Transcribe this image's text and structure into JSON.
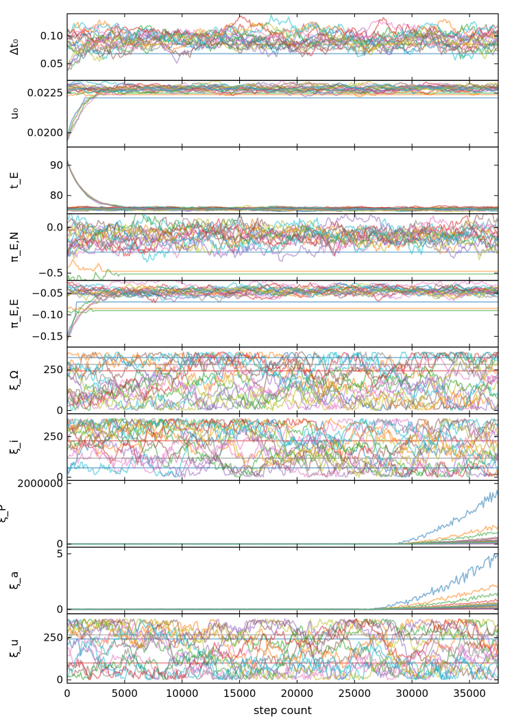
{
  "chart_data": {
    "type": "line",
    "xlabel": "step count",
    "xlim": [
      0,
      37500
    ],
    "xticks": [
      0,
      5000,
      10000,
      15000,
      20000,
      25000,
      30000,
      35000
    ],
    "walkers": 20,
    "walker_colors": [
      "#1f77b4",
      "#ff7f0e",
      "#2ca02c",
      "#d62728",
      "#9467bd",
      "#8c564b",
      "#e377c2",
      "#7f7f7f",
      "#bcbd22",
      "#17becf",
      "#1f77b4",
      "#ff7f0e",
      "#2ca02c",
      "#d62728",
      "#9467bd",
      "#8c564b",
      "#e377c2",
      "#7f7f7f",
      "#bcbd22",
      "#17becf"
    ],
    "panels": [
      {
        "id": "dt0",
        "ylabel": "Δt₀",
        "ylim": [
          0.02,
          0.14
        ],
        "yticks": [
          0.05,
          0.1
        ],
        "tick_labels": [
          "0.05",
          "0.10"
        ],
        "kind": "band",
        "center": 0.095,
        "spread": 0.012,
        "low": [
          0.068,
          0.085
        ],
        "burnin_from": 0.035,
        "burnin_steps": 2500
      },
      {
        "id": "u0",
        "ylabel": "u₀",
        "ylim": [
          0.0191,
          0.0233
        ],
        "yticks": [
          0.02,
          0.0225
        ],
        "tick_labels": [
          "0.0200",
          "0.0225"
        ],
        "kind": "band",
        "center": 0.0228,
        "spread": 0.00015,
        "low": [
          0.0222,
          0.0224,
          0.0225
        ],
        "burnin_from": 0.0193,
        "burnin_steps": 1500
      },
      {
        "id": "tE",
        "ylabel": "t_E",
        "ylim": [
          74,
          96
        ],
        "yticks": [
          80,
          90
        ],
        "tick_labels": [
          "80",
          "90"
        ],
        "kind": "band",
        "center": 75.6,
        "spread": 0.3,
        "low": [],
        "burnin_from": 93,
        "burnin_steps": 600
      },
      {
        "id": "piEN",
        "ylabel": "π_E,N",
        "ylim": [
          -0.58,
          0.15
        ],
        "yticks": [
          -0.5,
          0.0
        ],
        "tick_labels": [
          "−0.5",
          "0.0"
        ],
        "kind": "band",
        "center": -0.07,
        "spread": 0.09,
        "low": [
          -0.27,
          -0.48,
          -0.51
        ],
        "burnin_from": -0.3,
        "burnin_steps": 1500
      },
      {
        "id": "piEE",
        "ylabel": "π_E,E",
        "ylim": [
          -0.175,
          -0.02
        ],
        "yticks": [
          -0.15,
          -0.1,
          -0.05
        ],
        "tick_labels": [
          "−0.15",
          "−0.10",
          "−0.05"
        ],
        "kind": "band",
        "center": -0.045,
        "spread": 0.008,
        "low": [
          -0.07,
          -0.085,
          -0.09
        ],
        "burnin_from": -0.165,
        "burnin_steps": 800
      },
      {
        "id": "xiOmega",
        "ylabel": "ξ_Ω",
        "ylim": [
          -20,
          390
        ],
        "yticks": [
          0,
          250
        ],
        "tick_labels": [
          "0",
          "250"
        ],
        "kind": "wide",
        "lo": 0,
        "hi": 360
      },
      {
        "id": "xii",
        "ylabel": "ξ_i",
        "ylim": [
          -20,
          390
        ],
        "yticks": [
          0,
          250
        ],
        "tick_labels": [
          "0",
          "250"
        ],
        "kind": "wide",
        "lo": 0,
        "hi": 360
      },
      {
        "id": "xiP",
        "ylabel": "ξ_P",
        "ylim": [
          -100000,
          2100000
        ],
        "yticks": [
          0,
          2000000
        ],
        "tick_labels": [
          "0",
          "2000000"
        ],
        "kind": "grow",
        "base": 0,
        "grow_start": 28000,
        "grow_max": [
          1700000,
          600000,
          400000,
          200000
        ]
      },
      {
        "id": "xia",
        "ylabel": "ξ_a",
        "ylim": [
          -0.4,
          5.6
        ],
        "yticks": [
          0,
          5
        ],
        "tick_labels": [
          "0",
          "5"
        ],
        "kind": "grow",
        "base": 0,
        "grow_start": 26000,
        "grow_max": [
          4.8,
          2.2,
          1.4,
          0.8
        ]
      },
      {
        "id": "xiu",
        "ylabel": "ξ_u",
        "ylim": [
          -20,
          390
        ],
        "yticks": [
          0,
          250
        ],
        "tick_labels": [
          "0",
          "250"
        ],
        "kind": "wide",
        "lo": 0,
        "hi": 360
      }
    ]
  }
}
